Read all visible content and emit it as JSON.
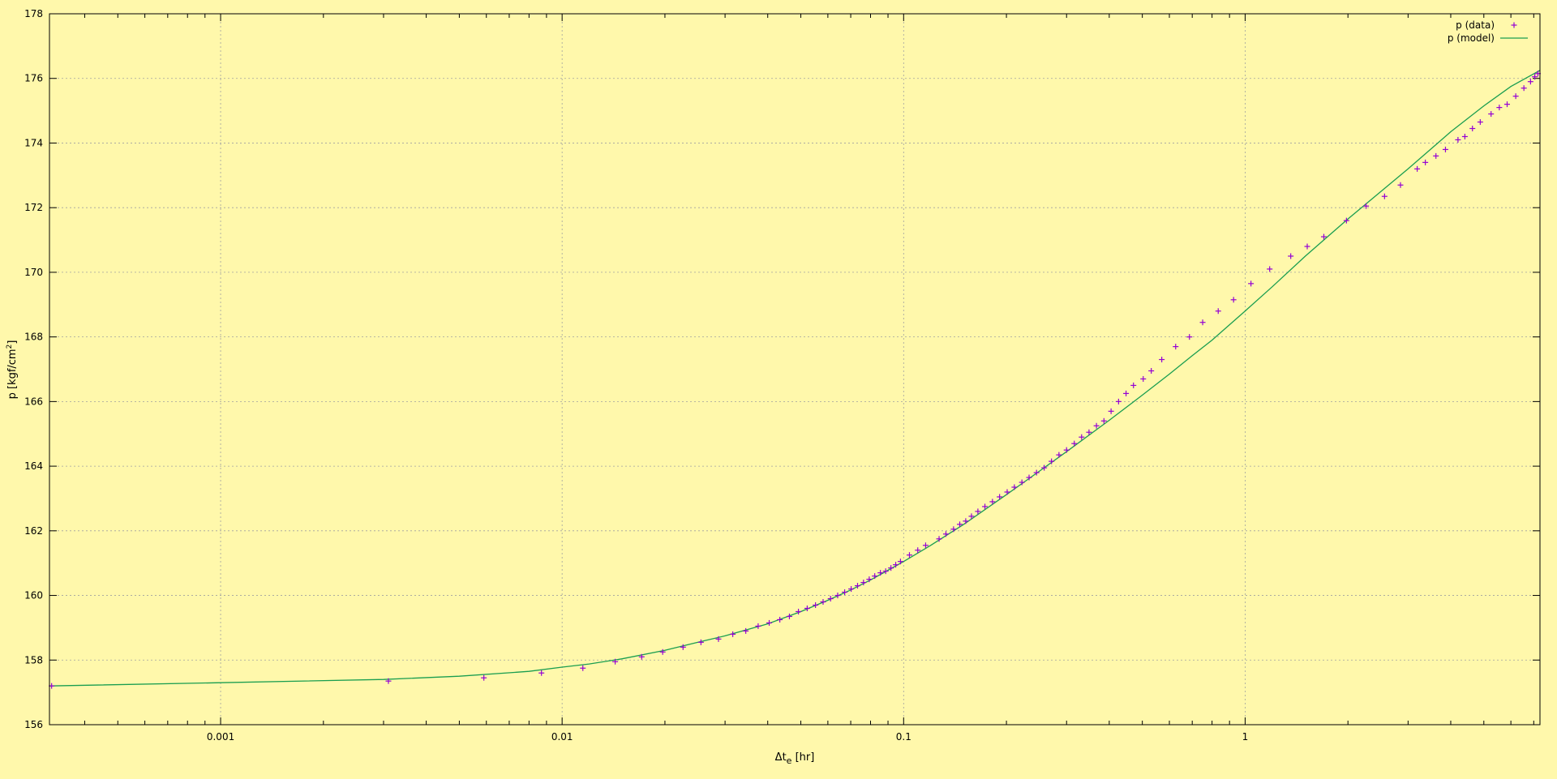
{
  "chart_data": {
    "type": "scatter",
    "xscale": "log",
    "xlim": [
      0.0003154,
      7.3
    ],
    "ylim": [
      156,
      178
    ],
    "grid": true,
    "legend_position": "top-right",
    "xlabel": {
      "main": "Δt",
      "sub": "e",
      "rest": " [hr]"
    },
    "ylabel": {
      "main": "p [kgf/cm",
      "sup": "2",
      "rest": "]"
    },
    "x_ticks": [
      {
        "value": 0.001,
        "label": "0.001"
      },
      {
        "value": 0.01,
        "label": "0.01"
      },
      {
        "value": 0.1,
        "label": "0.1"
      },
      {
        "value": 1,
        "label": "1"
      }
    ],
    "y_ticks": [
      {
        "value": 156,
        "label": "156"
      },
      {
        "value": 158,
        "label": "158"
      },
      {
        "value": 160,
        "label": "160"
      },
      {
        "value": 162,
        "label": "162"
      },
      {
        "value": 164,
        "label": "164"
      },
      {
        "value": 166,
        "label": "166"
      },
      {
        "value": 168,
        "label": "168"
      },
      {
        "value": 170,
        "label": "170"
      },
      {
        "value": 172,
        "label": "172"
      },
      {
        "value": 174,
        "label": "174"
      },
      {
        "value": 176,
        "label": "176"
      },
      {
        "value": 178,
        "label": "178"
      }
    ],
    "series": [
      {
        "name": "p (data)",
        "kind": "points",
        "marker": "plus",
        "color": "#9400d3",
        "x": [
          0.00032,
          0.0031,
          0.0059,
          0.0087,
          0.0115,
          0.0143,
          0.0171,
          0.0197,
          0.0226,
          0.0255,
          0.0287,
          0.0316,
          0.0345,
          0.0375,
          0.0404,
          0.0434,
          0.0463,
          0.0492,
          0.0522,
          0.0552,
          0.0581,
          0.0611,
          0.0641,
          0.0672,
          0.0702,
          0.0733,
          0.0763,
          0.0793,
          0.0823,
          0.0855,
          0.0886,
          0.0918,
          0.0948,
          0.0979,
          0.104,
          0.11,
          0.116,
          0.127,
          0.133,
          0.14,
          0.146,
          0.152,
          0.158,
          0.165,
          0.173,
          0.182,
          0.191,
          0.201,
          0.211,
          0.222,
          0.233,
          0.245,
          0.258,
          0.271,
          0.285,
          0.3,
          0.316,
          0.332,
          0.349,
          0.367,
          0.386,
          0.405,
          0.426,
          0.448,
          0.471,
          0.503,
          0.531,
          0.57,
          0.626,
          0.687,
          0.751,
          0.834,
          0.925,
          1.04,
          1.18,
          1.36,
          1.52,
          1.7,
          1.98,
          2.26,
          2.56,
          2.85,
          3.19,
          3.37,
          3.62,
          3.86,
          4.2,
          4.4,
          4.63,
          4.88,
          5.25,
          5.55,
          5.85,
          6.2,
          6.55,
          6.85,
          7.05,
          7.2
        ],
        "y": [
          157.2,
          157.35,
          157.45,
          157.6,
          157.75,
          157.95,
          158.1,
          158.25,
          158.4,
          158.55,
          158.65,
          158.8,
          158.9,
          159.05,
          159.15,
          159.25,
          159.35,
          159.5,
          159.6,
          159.7,
          159.8,
          159.9,
          160.0,
          160.1,
          160.2,
          160.3,
          160.4,
          160.5,
          160.6,
          160.7,
          160.75,
          160.85,
          160.95,
          161.05,
          161.25,
          161.4,
          161.55,
          161.75,
          161.9,
          162.05,
          162.2,
          162.3,
          162.45,
          162.6,
          162.75,
          162.9,
          163.05,
          163.2,
          163.35,
          163.5,
          163.65,
          163.8,
          163.95,
          164.15,
          164.35,
          164.5,
          164.7,
          164.9,
          165.05,
          165.25,
          165.4,
          165.7,
          166.0,
          166.25,
          166.5,
          166.7,
          166.95,
          167.3,
          167.7,
          168.0,
          168.45,
          168.8,
          169.15,
          169.65,
          170.1,
          170.5,
          170.8,
          171.1,
          171.6,
          172.05,
          172.35,
          172.7,
          173.2,
          173.4,
          173.6,
          173.8,
          174.1,
          174.2,
          174.45,
          174.65,
          174.9,
          175.1,
          175.2,
          175.45,
          175.7,
          175.9,
          176.05,
          176.15
        ]
      },
      {
        "name": "p (model)",
        "kind": "line",
        "color": "#1a9e50",
        "x": [
          0.0003154,
          0.001,
          0.003,
          0.005,
          0.008,
          0.01,
          0.012,
          0.015,
          0.02,
          0.025,
          0.03,
          0.04,
          0.05,
          0.06,
          0.07,
          0.08,
          0.09,
          0.1,
          0.12,
          0.15,
          0.2,
          0.25,
          0.3,
          0.4,
          0.5,
          0.6,
          0.7,
          0.8,
          1.0,
          1.2,
          1.5,
          2.0,
          3.0,
          4.0,
          5.0,
          6.0,
          7.3
        ],
        "y": [
          157.2,
          157.3,
          157.4,
          157.5,
          157.65,
          157.78,
          157.88,
          158.04,
          158.3,
          158.55,
          158.75,
          159.12,
          159.5,
          159.85,
          160.17,
          160.48,
          160.78,
          161.05,
          161.55,
          162.2,
          163.12,
          163.85,
          164.45,
          165.42,
          166.2,
          166.85,
          167.42,
          167.9,
          168.8,
          169.55,
          170.5,
          171.65,
          173.2,
          174.35,
          175.15,
          175.75,
          176.25
        ]
      }
    ]
  }
}
